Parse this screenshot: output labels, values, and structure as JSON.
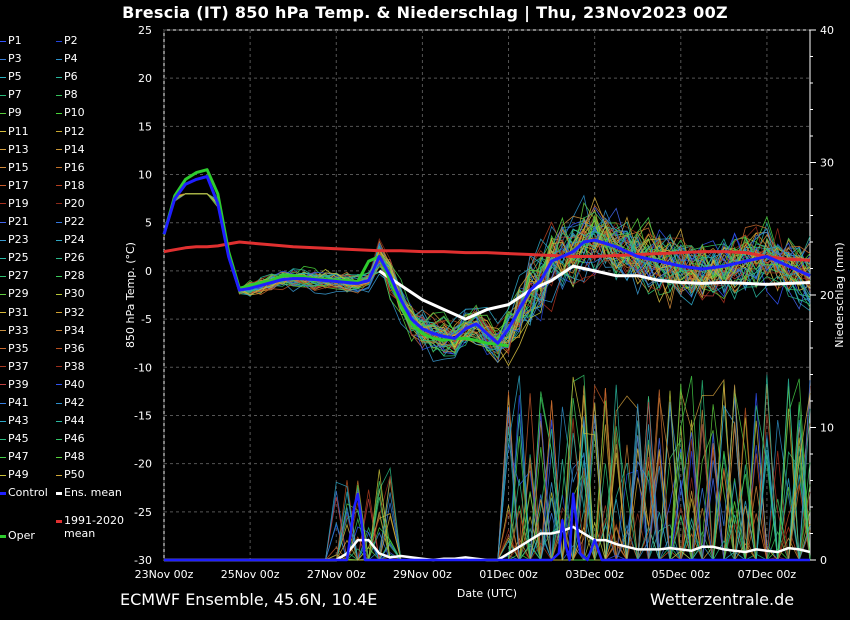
{
  "header": {
    "title": "Brescia  (IT)  850 hPa Temp. & Niederschlag | Thu, 23Nov2023 00Z"
  },
  "footer": {
    "left": "ECMWF Ensemble, 45.6N, 10.4E",
    "right": "Wetterzentrale.de"
  },
  "colors": {
    "background": "#000000",
    "grid": "#444444",
    "control": "#1f1fff",
    "oper": "#2ecc2e",
    "mean": "#ffffff",
    "climate": "#e03030"
  },
  "legend": {
    "members": [
      {
        "label": "P1",
        "color": "#3355ff"
      },
      {
        "label": "P2",
        "color": "#2244dd"
      },
      {
        "label": "P3",
        "color": "#3a7dd8"
      },
      {
        "label": "P4",
        "color": "#2e8fc8"
      },
      {
        "label": "P5",
        "color": "#2bb0c0"
      },
      {
        "label": "P6",
        "color": "#2ab59a"
      },
      {
        "label": "P7",
        "color": "#28b878"
      },
      {
        "label": "P8",
        "color": "#36c25a"
      },
      {
        "label": "P9",
        "color": "#5acb3c"
      },
      {
        "label": "P10",
        "color": "#48d43a"
      },
      {
        "label": "P11",
        "color": "#d8c040"
      },
      {
        "label": "P12",
        "color": "#c8a830"
      },
      {
        "label": "P13",
        "color": "#d4a040"
      },
      {
        "label": "P14",
        "color": "#c89638"
      },
      {
        "label": "P15",
        "color": "#d08a3a"
      },
      {
        "label": "P16",
        "color": "#c07028"
      },
      {
        "label": "P17",
        "color": "#c85a2a"
      },
      {
        "label": "P18",
        "color": "#b44020"
      },
      {
        "label": "P19",
        "color": "#a83020"
      },
      {
        "label": "P20",
        "color": "#8a2a1a"
      },
      {
        "label": "P21",
        "color": "#4466ee"
      },
      {
        "label": "P22",
        "color": "#3377dd"
      },
      {
        "label": "P23",
        "color": "#3a9ad0"
      },
      {
        "label": "P24",
        "color": "#30a8c4"
      },
      {
        "label": "P25",
        "color": "#2ab8a8"
      },
      {
        "label": "P26",
        "color": "#2ab88a"
      },
      {
        "label": "P27",
        "color": "#30c070"
      },
      {
        "label": "P28",
        "color": "#3cc85a"
      },
      {
        "label": "P29",
        "color": "#60cc40"
      },
      {
        "label": "P30",
        "color": "#b8c838"
      },
      {
        "label": "P31",
        "color": "#d8b838"
      },
      {
        "label": "P32",
        "color": "#d0a030"
      },
      {
        "label": "P33",
        "color": "#c89040"
      },
      {
        "label": "P34",
        "color": "#c07a30"
      },
      {
        "label": "P35",
        "color": "#c86a2e"
      },
      {
        "label": "P36",
        "color": "#b85020"
      },
      {
        "label": "P37",
        "color": "#a83a22"
      },
      {
        "label": "P38",
        "color": "#9a2e1c"
      },
      {
        "label": "P39",
        "color": "#c04040"
      },
      {
        "label": "P40",
        "color": "#3355ee"
      },
      {
        "label": "P41",
        "color": "#3a80e0"
      },
      {
        "label": "P42",
        "color": "#2e90cc"
      },
      {
        "label": "P43",
        "color": "#2ea8c8"
      },
      {
        "label": "P44",
        "color": "#2ab8a0"
      },
      {
        "label": "P45",
        "color": "#2cbc84"
      },
      {
        "label": "P46",
        "color": "#34c268"
      },
      {
        "label": "P47",
        "color": "#44cc48"
      },
      {
        "label": "P48",
        "color": "#58d03c"
      },
      {
        "label": "P49",
        "color": "#c8c038"
      },
      {
        "label": "P50",
        "color": "#d0a838"
      }
    ],
    "control": {
      "label": "Control",
      "color": "#1f1fff"
    },
    "mean": {
      "label": "Ens. mean",
      "color": "#ffffff"
    },
    "climate": {
      "label": "1991-2020\nmean",
      "color": "#e03030"
    },
    "oper": {
      "label": "Oper",
      "color": "#2ecc2e"
    }
  },
  "chart_data": {
    "type": "line",
    "title": "Brescia  (IT)  850 hPa Temp. & Niederschlag | Thu, 23Nov2023 00Z",
    "xlabel": "Date (UTC)",
    "ylabel": "850 hPa Temp. (°C)",
    "y2label": "Niederschlag (mm)",
    "xlim_hours": [
      0,
      360
    ],
    "ylim": [
      -30,
      25
    ],
    "y2lim": [
      0,
      40
    ],
    "yticks": [
      25,
      20,
      15,
      10,
      5,
      0,
      -5,
      -10,
      -15,
      -20,
      -25,
      -30
    ],
    "y2ticks": [
      40,
      30,
      20,
      10,
      0
    ],
    "xticks": [
      {
        "hour": 0,
        "label": "23Nov 00z"
      },
      {
        "hour": 48,
        "label": "25Nov 00z"
      },
      {
        "hour": 96,
        "label": "27Nov 00z"
      },
      {
        "hour": 144,
        "label": "29Nov 00z"
      },
      {
        "hour": 192,
        "label": "01Dec 00z"
      },
      {
        "hour": 240,
        "label": "03Dec 00z"
      },
      {
        "hour": 288,
        "label": "05Dec 00z"
      },
      {
        "hour": 336,
        "label": "07Dec 00z"
      }
    ],
    "grid": true,
    "series": [
      {
        "name": "Control",
        "kind": "temp",
        "color": "#1f1fff",
        "x": [
          0,
          6,
          12,
          18,
          24,
          30,
          36,
          42,
          48,
          54,
          60,
          66,
          72,
          78,
          84,
          90,
          96,
          102,
          108,
          114,
          120,
          126,
          132,
          138,
          144,
          150,
          156,
          162,
          168,
          174,
          180,
          186,
          192,
          198,
          204,
          210,
          216,
          222,
          228,
          234,
          240,
          252,
          264,
          276,
          288,
          300,
          312,
          324,
          336,
          348,
          360
        ],
        "y": [
          3.8,
          7.5,
          9,
          9.5,
          9.8,
          7,
          1.5,
          -2,
          -1.8,
          -1.5,
          -1.2,
          -0.9,
          -0.8,
          -0.8,
          -0.9,
          -1,
          -1.1,
          -1.2,
          -1.3,
          -1,
          1.5,
          -0.5,
          -3,
          -5,
          -6,
          -6.5,
          -6.8,
          -7,
          -6,
          -5.5,
          -6.5,
          -7.5,
          -6,
          -4,
          -2,
          -1,
          1,
          1.5,
          2,
          3,
          3.2,
          2.5,
          1.5,
          1,
          0.5,
          0.2,
          0.5,
          1,
          1.5,
          0.5,
          -0.5
        ]
      },
      {
        "name": "Oper",
        "kind": "temp",
        "color": "#2ecc2e",
        "x": [
          0,
          6,
          12,
          18,
          24,
          30,
          36,
          42,
          48,
          54,
          60,
          66,
          72,
          78,
          84,
          90,
          96,
          102,
          108,
          114,
          120,
          126,
          132,
          138,
          144,
          150,
          156,
          162,
          168,
          174,
          180,
          186,
          192
        ],
        "y": [
          3.8,
          7.8,
          9.5,
          10.2,
          10.5,
          8,
          2,
          -1.8,
          -1.5,
          -1.2,
          -1,
          -0.5,
          -0.5,
          -0.6,
          -0.8,
          -0.9,
          -1,
          -1,
          -1.1,
          1,
          1.5,
          -1,
          -3.5,
          -5.5,
          -6.5,
          -7,
          -7.2,
          -7,
          -7,
          -7.2,
          -7.5,
          -7.6,
          -7.8
        ]
      },
      {
        "name": "Ens. mean",
        "kind": "temp",
        "color": "#ffffff",
        "x": [
          120,
          132,
          144,
          156,
          168,
          180,
          192,
          204,
          216,
          228,
          240,
          252,
          264,
          276,
          288,
          300,
          312,
          324,
          336,
          348,
          360
        ],
        "y": [
          0,
          -1.5,
          -3,
          -4,
          -5,
          -4,
          -3.5,
          -2,
          -1,
          0.5,
          0,
          -0.5,
          -0.5,
          -1,
          -1.2,
          -1.3,
          -1.2,
          -1.3,
          -1.4,
          -1.3,
          -1.2
        ]
      },
      {
        "name": "1991-2020 mean",
        "kind": "temp",
        "color": "#e03030",
        "x": [
          0,
          6,
          12,
          18,
          24,
          30,
          36,
          42,
          48,
          60,
          72,
          84,
          96,
          108,
          120,
          132,
          144,
          156,
          168,
          180,
          192,
          204,
          216,
          228,
          240,
          252,
          264,
          276,
          288,
          300,
          312,
          324,
          336,
          348,
          360
        ],
        "y": [
          2,
          2.2,
          2.4,
          2.5,
          2.5,
          2.6,
          2.8,
          3,
          2.9,
          2.7,
          2.5,
          2.4,
          2.3,
          2.2,
          2.1,
          2.1,
          2,
          2,
          1.9,
          1.9,
          1.8,
          1.7,
          1.6,
          1.5,
          1.5,
          1.6,
          1.7,
          1.8,
          1.9,
          2,
          2,
          1.9,
          1.5,
          1.2,
          1.1
        ]
      },
      {
        "name": "Ens. mean precip",
        "kind": "precip",
        "color": "#ffffff",
        "x": [
          0,
          96,
          102,
          108,
          114,
          120,
          126,
          132,
          138,
          144,
          150,
          156,
          162,
          168,
          174,
          180,
          186,
          192,
          198,
          204,
          210,
          216,
          222,
          228,
          234,
          240,
          246,
          252,
          258,
          264,
          270,
          276,
          282,
          288,
          294,
          300,
          306,
          312,
          318,
          324,
          330,
          336,
          342,
          348,
          354,
          360
        ],
        "y": [
          0,
          0,
          0.5,
          1.5,
          1.5,
          0.5,
          0.2,
          0.3,
          0.2,
          0.1,
          0,
          0.1,
          0.1,
          0.2,
          0.1,
          0,
          0,
          0.5,
          1,
          1.5,
          2,
          2,
          2.2,
          2.5,
          2,
          1.5,
          1.5,
          1.2,
          1,
          0.8,
          0.8,
          0.8,
          0.9,
          0.8,
          0.7,
          1,
          1,
          0.8,
          0.7,
          0.6,
          0.8,
          0.7,
          0.6,
          0.9,
          0.8,
          0.6
        ]
      },
      {
        "name": "Control precip",
        "kind": "precip",
        "color": "#1f1fff",
        "x": [
          0,
          102,
          106,
          108,
          110,
          112,
          116,
          192,
          216,
          220,
          222,
          224,
          226,
          228,
          232,
          236,
          240,
          244,
          360
        ],
        "y": [
          0,
          0,
          4,
          5,
          3,
          0,
          0,
          0,
          0,
          0.5,
          3,
          1,
          0,
          5,
          0.5,
          0,
          1.5,
          0,
          0
        ]
      }
    ]
  }
}
